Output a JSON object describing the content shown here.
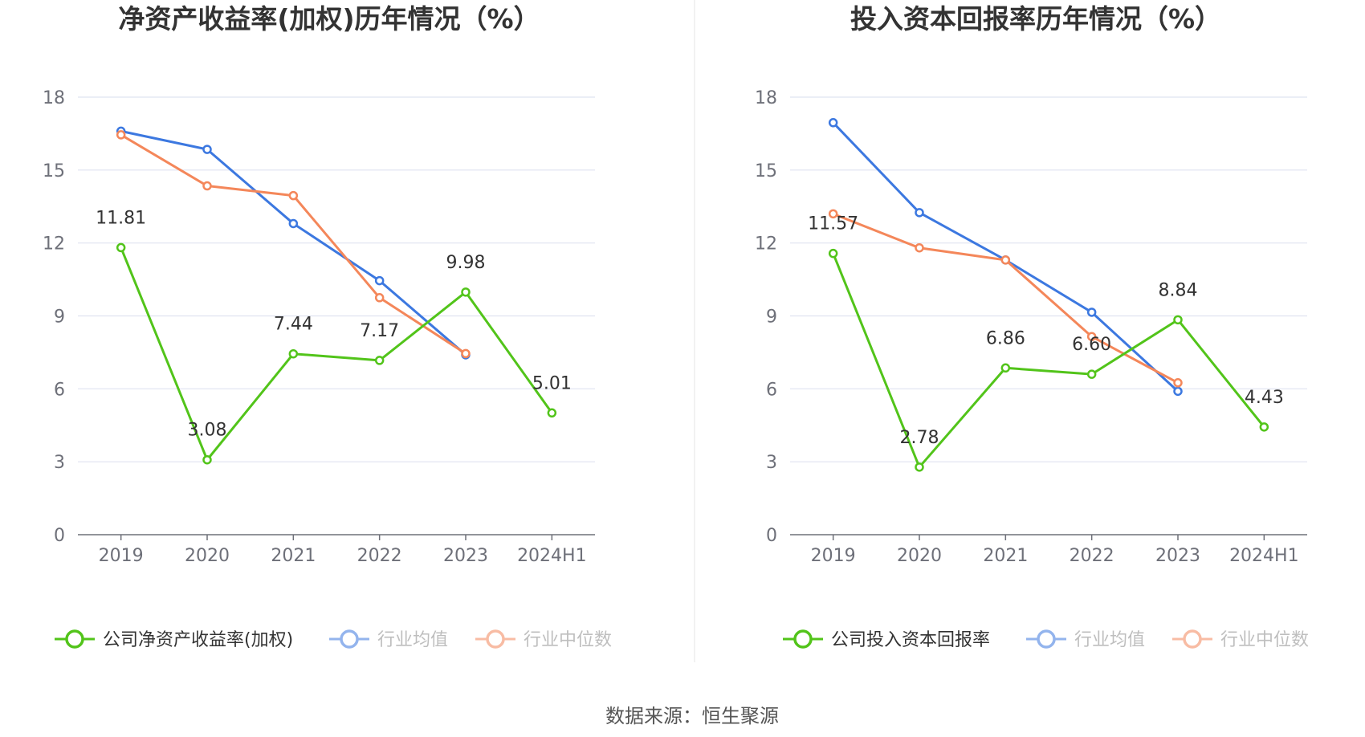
{
  "source": "数据来源：恒生聚源",
  "colors": {
    "company": "#52c41a",
    "industry_avg": "#3c78e0",
    "industry_median": "#f4875a",
    "grid": "#dfe3f0",
    "axis": "#6e7079"
  },
  "chart_data": [
    {
      "type": "line",
      "title": "净资产收益率(加权)历年情况（%）",
      "categories": [
        "2019",
        "2020",
        "2021",
        "2022",
        "2023",
        "2024H1"
      ],
      "ylim": [
        0,
        18
      ],
      "yticks": [
        0,
        3,
        6,
        9,
        12,
        15,
        18
      ],
      "grid": true,
      "legend_position": "bottom",
      "series": [
        {
          "name": "公司净资产收益率(加权)",
          "key": "company",
          "values": [
            11.81,
            3.08,
            7.44,
            7.17,
            9.98,
            5.01
          ],
          "labels": [
            "11.81",
            "3.08",
            "7.44",
            "7.17",
            "9.98",
            "5.01"
          ]
        },
        {
          "name": "行业均值",
          "key": "industry_avg",
          "values": [
            16.6,
            15.85,
            12.8,
            10.45,
            7.4,
            null
          ]
        },
        {
          "name": "行业中位数",
          "key": "industry_median",
          "values": [
            16.45,
            14.35,
            13.95,
            9.75,
            7.45,
            null
          ]
        }
      ]
    },
    {
      "type": "line",
      "title": "投入资本回报率历年情况（%）",
      "categories": [
        "2019",
        "2020",
        "2021",
        "2022",
        "2023",
        "2024H1"
      ],
      "ylim": [
        0,
        18
      ],
      "yticks": [
        0,
        3,
        6,
        9,
        12,
        15,
        18
      ],
      "grid": true,
      "legend_position": "bottom",
      "series": [
        {
          "name": "公司投入资本回报率",
          "key": "company",
          "values": [
            11.57,
            2.78,
            6.86,
            6.6,
            8.84,
            4.43
          ],
          "labels": [
            "11.57",
            "2.78",
            "6.86",
            "6.60",
            "8.84",
            "4.43"
          ]
        },
        {
          "name": "行业均值",
          "key": "industry_avg",
          "values": [
            16.95,
            13.25,
            11.3,
            9.15,
            5.9,
            null
          ]
        },
        {
          "name": "行业中位数",
          "key": "industry_median",
          "values": [
            13.2,
            11.8,
            11.3,
            8.15,
            6.25,
            null
          ]
        }
      ]
    }
  ]
}
